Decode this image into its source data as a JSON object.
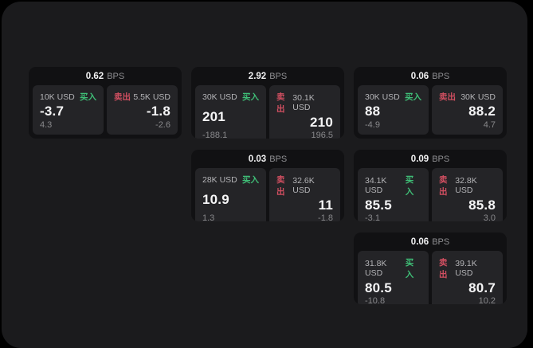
{
  "colors": {
    "buy_green": "#3fbf77",
    "sell_red": "#d14f61",
    "panel_bg": "#1b1b1d",
    "card_bg": "#111113",
    "tile_bg": "#242427"
  },
  "labels": {
    "buy": "买入",
    "sell": "卖出",
    "bps": "BPS"
  },
  "cards": [
    {
      "row": 1,
      "col": 1,
      "bps": "0.62",
      "buy": {
        "amount": "10K USD",
        "value": "-3.7",
        "sub": "4.3"
      },
      "sell": {
        "amount": "5.5K USD",
        "value": "-1.8",
        "sub": "-2.6"
      }
    },
    {
      "row": 1,
      "col": 2,
      "bps": "2.92",
      "buy": {
        "amount": "30K USD",
        "value": "201",
        "sub": "-188.1"
      },
      "sell": {
        "amount": "30.1K USD",
        "value": "210",
        "sub": "196.5"
      }
    },
    {
      "row": 1,
      "col": 3,
      "bps": "0.06",
      "buy": {
        "amount": "30K USD",
        "value": "88",
        "sub": "-4.9"
      },
      "sell": {
        "amount": "30K USD",
        "value": "88.2",
        "sub": "4.7"
      }
    },
    {
      "row": 2,
      "col": 2,
      "bps": "0.03",
      "buy": {
        "amount": "28K USD",
        "value": "10.9",
        "sub": "1.3"
      },
      "sell": {
        "amount": "32.6K USD",
        "value": "11",
        "sub": "-1.8"
      }
    },
    {
      "row": 2,
      "col": 3,
      "bps": "0.09",
      "buy": {
        "amount": "34.1K USD",
        "value": "85.5",
        "sub": "-3.1"
      },
      "sell": {
        "amount": "32.8K USD",
        "value": "85.8",
        "sub": "3.0"
      }
    },
    {
      "row": 3,
      "col": 3,
      "bps": "0.06",
      "buy": {
        "amount": "31.8K USD",
        "value": "80.5",
        "sub": "-10.8"
      },
      "sell": {
        "amount": "39.1K USD",
        "value": "80.7",
        "sub": "10.2"
      }
    }
  ]
}
